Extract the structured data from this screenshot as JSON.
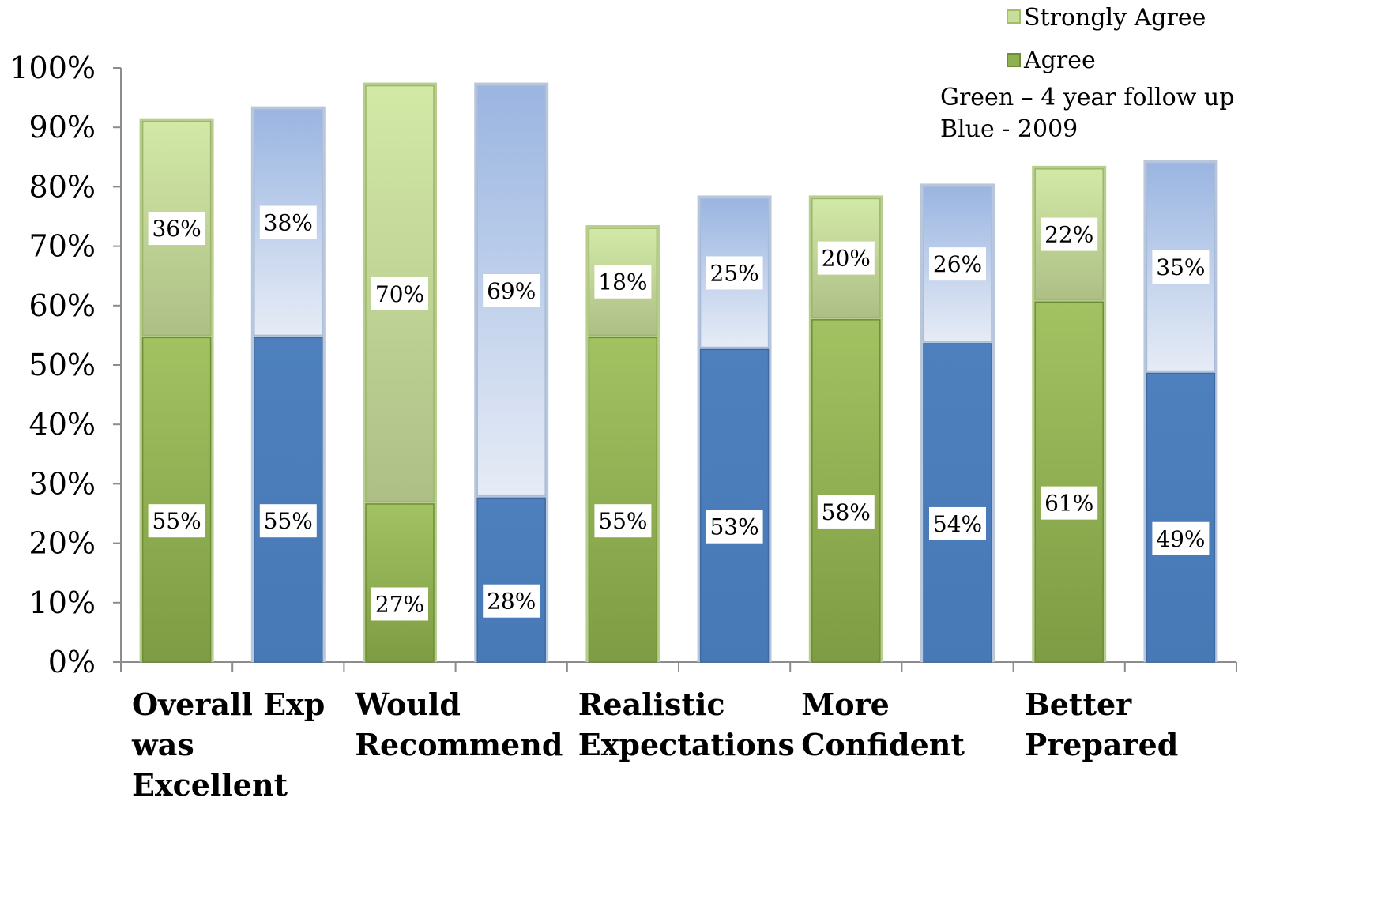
{
  "chart_data": {
    "type": "bar",
    "stacked": true,
    "y_ticks": [
      "0%",
      "10%",
      "20%",
      "30%",
      "40%",
      "50%",
      "60%",
      "70%",
      "80%",
      "90%",
      "100%"
    ],
    "ylim": [
      0,
      100
    ],
    "categories": [
      {
        "lines": [
          "Overall Exp",
          "was",
          "Excellent"
        ]
      },
      {
        "lines": [
          "Would",
          "Recommend"
        ]
      },
      {
        "lines": [
          "Realistic",
          "Expectations"
        ]
      },
      {
        "lines": [
          "More",
          "Confident"
        ]
      },
      {
        "lines": [
          "Better",
          "Prepared"
        ]
      }
    ],
    "bars": [
      {
        "group": "Green",
        "category": "Overall Exp was Excellent",
        "agree": 55,
        "strongly_agree": 36,
        "agree_label": "55%",
        "strongly_agree_label": "36%"
      },
      {
        "group": "Blue",
        "category": "Overall Exp was Excellent",
        "agree": 55,
        "strongly_agree": 38,
        "agree_label": "55%",
        "strongly_agree_label": "38%"
      },
      {
        "group": "Green",
        "category": "Would Recommend",
        "agree": 27,
        "strongly_agree": 70,
        "agree_label": "27%",
        "strongly_agree_label": "70%"
      },
      {
        "group": "Blue",
        "category": "Would Recommend",
        "agree": 28,
        "strongly_agree": 69,
        "agree_label": "28%",
        "strongly_agree_label": "69%"
      },
      {
        "group": "Green",
        "category": "Realistic Expectations",
        "agree": 55,
        "strongly_agree": 18,
        "agree_label": "55%",
        "strongly_agree_label": "18%"
      },
      {
        "group": "Blue",
        "category": "Realistic Expectations",
        "agree": 53,
        "strongly_agree": 25,
        "agree_label": "53%",
        "strongly_agree_label": "25%"
      },
      {
        "group": "Green",
        "category": "More Confident",
        "agree": 58,
        "strongly_agree": 20,
        "agree_label": "58%",
        "strongly_agree_label": "20%"
      },
      {
        "group": "Blue",
        "category": "More Confident",
        "agree": 54,
        "strongly_agree": 26,
        "agree_label": "54%",
        "strongly_agree_label": "26%"
      },
      {
        "group": "Green",
        "category": "Better Prepared",
        "agree": 61,
        "strongly_agree": 22,
        "agree_label": "61%",
        "strongly_agree_label": "22%"
      },
      {
        "group": "Blue",
        "category": "Better Prepared",
        "agree": 49,
        "strongly_agree": 35,
        "agree_label": "49%",
        "strongly_agree_label": "35%"
      }
    ],
    "legend": {
      "placement": "top-right",
      "entries": [
        {
          "name": "Strongly Agree"
        },
        {
          "name": "Agree"
        }
      ]
    },
    "notes": [
      "Green – 4 year follow up",
      "Blue - 2009"
    ],
    "colors": {
      "green_agree": "#8fb04e",
      "green_strong": "#c6de9a",
      "blue_agree": "#4a7ebb",
      "blue_strong": "#bccde9"
    }
  }
}
